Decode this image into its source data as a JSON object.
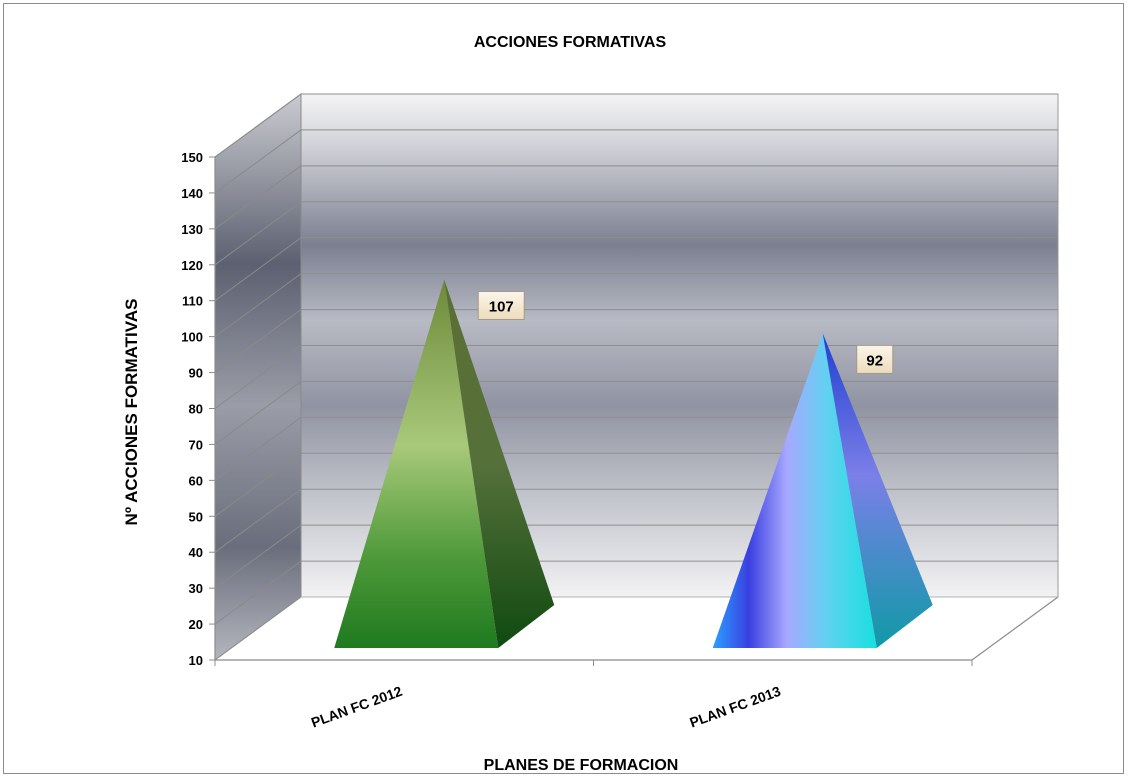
{
  "chart_data": {
    "type": "bar",
    "title": "ACCIONES FORMATIVAS",
    "xlabel": "PLANES DE FORMACION",
    "ylabel": "Nº ACCIONES FORMATIVAS",
    "categories": [
      "PLAN FC 2012",
      "PLAN FC 2013"
    ],
    "values": [
      107,
      92
    ],
    "data_labels": [
      "107",
      "92"
    ],
    "ylim": [
      10,
      150
    ],
    "yticks": [
      10,
      20,
      30,
      40,
      50,
      60,
      70,
      80,
      90,
      100,
      110,
      120,
      130,
      140,
      150
    ],
    "grid": true,
    "legend": "none",
    "bar_shape": "3d-pyramid",
    "colors": [
      "#3e8a26",
      "#2f86f0"
    ]
  }
}
